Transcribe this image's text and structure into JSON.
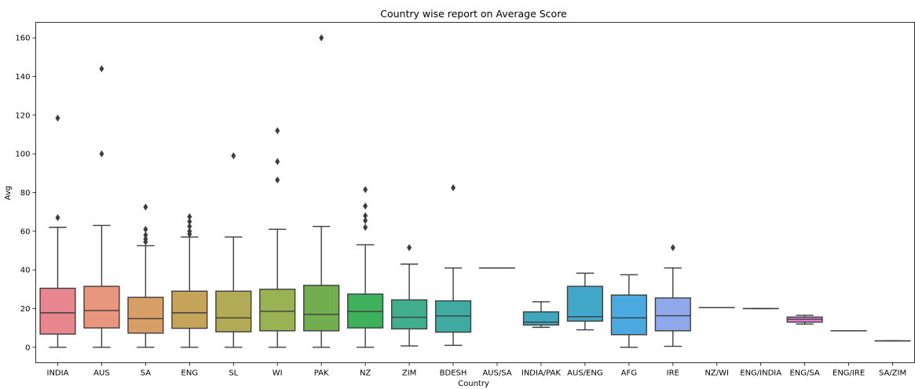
{
  "chart_data": {
    "type": "box",
    "title": "Country wise report on Average Score",
    "xlabel": "Country",
    "ylabel": "Avg",
    "ylim": [
      -8,
      168
    ],
    "yticks": [
      0,
      20,
      40,
      60,
      80,
      100,
      120,
      140,
      160
    ],
    "grid": false,
    "legend": "none",
    "categories": [
      "INDIA",
      "AUS",
      "SA",
      "ENG",
      "SL",
      "WI",
      "PAK",
      "NZ",
      "ZIM",
      "BDESH",
      "AUS/SA",
      "INDIA/PAK",
      "AUS/ENG",
      "AFG",
      "IRE",
      "NZ/WI",
      "ENG/INDIA",
      "ENG/SA",
      "ENG/IRE",
      "SA/ZIM"
    ],
    "boxes": [
      {
        "category": "INDIA",
        "color": "#e8868f",
        "whislo": 0,
        "q1": 6.8,
        "med": 17.8,
        "q3": 30.5,
        "whishi": 62,
        "fliers": [
          67,
          118.5
        ]
      },
      {
        "category": "AUS",
        "color": "#e8977e",
        "whislo": 0,
        "q1": 10,
        "med": 19,
        "q3": 31.5,
        "whishi": 63,
        "fliers": [
          100,
          144
        ]
      },
      {
        "category": "SA",
        "color": "#d89e68",
        "whislo": 0,
        "q1": 7.3,
        "med": 14.8,
        "q3": 25.8,
        "whishi": 52.5,
        "fliers": [
          54.5,
          56,
          58,
          61,
          72.5
        ]
      },
      {
        "category": "ENG",
        "color": "#c6a55a",
        "whislo": 0,
        "q1": 9.8,
        "med": 17.8,
        "q3": 29,
        "whishi": 57,
        "fliers": [
          58.5,
          60,
          62.5,
          65,
          67.5
        ]
      },
      {
        "category": "SL",
        "color": "#b1ab56",
        "whislo": 0,
        "q1": 8,
        "med": 15.2,
        "q3": 29,
        "whishi": 57,
        "fliers": [
          99
        ]
      },
      {
        "category": "WI",
        "color": "#98b254",
        "whislo": 0,
        "q1": 8.5,
        "med": 18.6,
        "q3": 30,
        "whishi": 61,
        "fliers": [
          86.5,
          96,
          112
        ]
      },
      {
        "category": "PAK",
        "color": "#72ad4f",
        "whislo": 0,
        "q1": 8.5,
        "med": 17,
        "q3": 32,
        "whishi": 62.5,
        "fliers": [
          160
        ]
      },
      {
        "category": "NZ",
        "color": "#3fb15d",
        "whislo": 0,
        "q1": 10,
        "med": 18.5,
        "q3": 27.5,
        "whishi": 53,
        "fliers": [
          62,
          65.5,
          68,
          73,
          81.5
        ]
      },
      {
        "category": "ZIM",
        "color": "#40ae8c",
        "whislo": 0.7,
        "q1": 9.5,
        "med": 15.5,
        "q3": 24.5,
        "whishi": 43,
        "fliers": [
          51.5
        ]
      },
      {
        "category": "BDESH",
        "color": "#3faba2",
        "whislo": 1,
        "q1": 7.8,
        "med": 16.2,
        "q3": 24,
        "whishi": 41,
        "fliers": [
          82.5
        ]
      },
      {
        "category": "AUS/SA",
        "color": "#3ea7b0",
        "whislo": 41,
        "q1": 41,
        "med": 41,
        "q3": 41,
        "whishi": 41,
        "fliers": []
      },
      {
        "category": "INDIA/PAK",
        "color": "#40a6bb",
        "whislo": 10.3,
        "q1": 11.5,
        "med": 13,
        "q3": 18.3,
        "whishi": 23.5,
        "fliers": []
      },
      {
        "category": "AUS/ENG",
        "color": "#41a8c9",
        "whislo": 9,
        "q1": 13.5,
        "med": 15.8,
        "q3": 31.5,
        "whishi": 38.3,
        "fliers": []
      },
      {
        "category": "AFG",
        "color": "#4aa9de",
        "whislo": 0,
        "q1": 6.5,
        "med": 15.2,
        "q3": 27,
        "whishi": 37.5,
        "fliers": []
      },
      {
        "category": "IRE",
        "color": "#8ea8ea",
        "whislo": 0.5,
        "q1": 8.5,
        "med": 16.3,
        "q3": 25.5,
        "whishi": 41,
        "fliers": [
          51.5
        ]
      },
      {
        "category": "NZ/WI",
        "color": "#b19ceb",
        "whislo": 20.5,
        "q1": 20.5,
        "med": 20.5,
        "q3": 20.5,
        "whishi": 20.5,
        "fliers": []
      },
      {
        "category": "ENG/INDIA",
        "color": "#d28dea",
        "whislo": 20,
        "q1": 20,
        "med": 20,
        "q3": 20,
        "whishi": 20,
        "fliers": []
      },
      {
        "category": "ENG/SA",
        "color": "#e27fd6",
        "whislo": 12,
        "q1": 13,
        "med": 14.5,
        "q3": 15.6,
        "whishi": 16.5,
        "fliers": []
      },
      {
        "category": "ENG/IRE",
        "color": "#e884b8",
        "whislo": 8.5,
        "q1": 8.5,
        "med": 8.5,
        "q3": 8.5,
        "whishi": 8.5,
        "fliers": []
      },
      {
        "category": "SA/ZIM",
        "color": "#e98aa4",
        "whislo": 3.3,
        "q1": 3.3,
        "med": 3.3,
        "q3": 3.3,
        "whishi": 3.3,
        "fliers": []
      }
    ]
  }
}
